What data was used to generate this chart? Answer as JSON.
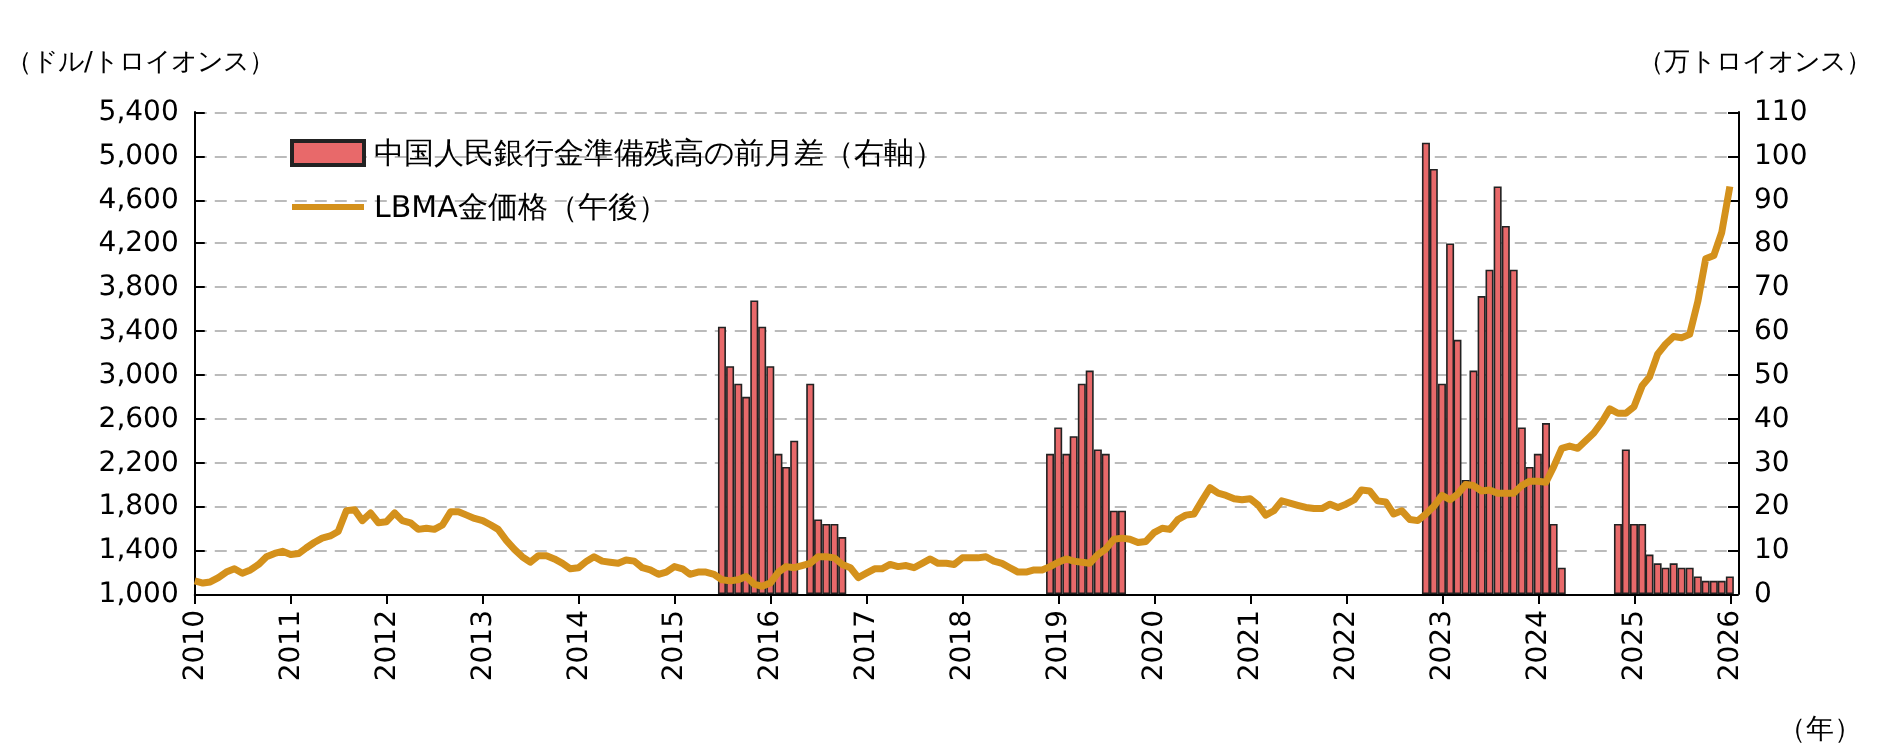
{
  "chart_data": {
    "type": "bar",
    "ylabel": "（ドル/トロイオンス）",
    "y2label": "（万トロイオンス）",
    "xlabel": "（年）",
    "xlim": [
      "2010-01",
      "2026-02"
    ],
    "xticks": [
      "2010",
      "2011",
      "2012",
      "2013",
      "2014",
      "2015",
      "2016",
      "2017",
      "2018",
      "2019",
      "2020",
      "2021",
      "2022",
      "2023",
      "2024",
      "2025",
      "2026"
    ],
    "ylim": [
      1000,
      5400
    ],
    "yticks": [
      {
        "value": 1000,
        "label": "1,000"
      },
      {
        "value": 1400,
        "label": "1,400"
      },
      {
        "value": 1800,
        "label": "1,800"
      },
      {
        "value": 2200,
        "label": "2,200"
      },
      {
        "value": 2600,
        "label": "2,600"
      },
      {
        "value": 3000,
        "label": "3,000"
      },
      {
        "value": 3400,
        "label": "3,400"
      },
      {
        "value": 3800,
        "label": "3,800"
      },
      {
        "value": 4200,
        "label": "4,200"
      },
      {
        "value": 4600,
        "label": "4,600"
      },
      {
        "value": 5000,
        "label": "5,000"
      },
      {
        "value": 5400,
        "label": "5,400"
      }
    ],
    "y2lim": [
      0,
      110
    ],
    "y2ticks": [
      0,
      10,
      20,
      30,
      40,
      50,
      60,
      70,
      80,
      90,
      100,
      110
    ],
    "grid": "y",
    "legend": "top left",
    "series": [
      {
        "name": "中国人民銀行金準備残高の前月差（右軸）",
        "axis": "y2",
        "color": "#e8696a",
        "x": [
          "2015-07",
          "2015-08",
          "2015-09",
          "2015-10",
          "2015-11",
          "2015-12",
          "2016-01",
          "2016-02",
          "2016-03",
          "2016-04",
          "2016-05",
          "2016-06",
          "2016-07",
          "2016-08",
          "2016-09",
          "2016-10",
          "2018-12",
          "2019-01",
          "2019-02",
          "2019-03",
          "2019-04",
          "2019-05",
          "2019-06",
          "2019-07",
          "2019-08",
          "2019-09",
          "2022-11",
          "2022-12",
          "2023-01",
          "2023-02",
          "2023-03",
          "2023-04",
          "2023-05",
          "2023-06",
          "2023-07",
          "2023-08",
          "2023-09",
          "2023-10",
          "2023-11",
          "2023-12",
          "2024-01",
          "2024-02",
          "2024-03",
          "2024-04",
          "2024-11",
          "2024-12",
          "2025-01",
          "2025-02",
          "2025-03",
          "2025-04",
          "2025-05",
          "2025-06",
          "2025-07",
          "2025-08",
          "2025-09",
          "2025-10",
          "2025-11",
          "2025-12",
          "2026-01"
        ],
        "values": [
          61,
          52,
          48,
          45,
          67,
          61,
          52,
          32,
          29,
          35,
          null,
          48,
          17,
          16,
          16,
          13,
          32,
          38,
          32,
          36,
          48,
          51,
          33,
          32,
          19,
          19,
          103,
          97,
          48,
          80,
          58,
          26,
          51,
          68,
          74,
          93,
          84,
          74,
          38,
          29,
          32,
          39,
          16,
          6,
          16,
          33,
          16,
          16,
          9,
          7,
          6,
          7,
          6,
          6,
          4,
          3,
          3,
          3,
          4
        ]
      },
      {
        "name": "LBMA金価格（午後）",
        "type": "line",
        "color": "#d4911c",
        "marker": "none",
        "x": [
          "2010-01",
          "2010-02",
          "2010-03",
          "2010-04",
          "2010-05",
          "2010-06",
          "2010-07",
          "2010-08",
          "2010-09",
          "2010-10",
          "2010-11",
          "2010-12",
          "2011-01",
          "2011-02",
          "2011-03",
          "2011-04",
          "2011-05",
          "2011-06",
          "2011-07",
          "2011-08",
          "2011-09",
          "2011-10",
          "2011-11",
          "2011-12",
          "2012-01",
          "2012-02",
          "2012-03",
          "2012-04",
          "2012-05",
          "2012-06",
          "2012-07",
          "2012-08",
          "2012-09",
          "2012-10",
          "2012-11",
          "2012-12",
          "2013-01",
          "2013-02",
          "2013-03",
          "2013-04",
          "2013-05",
          "2013-06",
          "2013-07",
          "2013-08",
          "2013-09",
          "2013-10",
          "2013-11",
          "2013-12",
          "2014-01",
          "2014-02",
          "2014-03",
          "2014-04",
          "2014-05",
          "2014-06",
          "2014-07",
          "2014-08",
          "2014-09",
          "2014-10",
          "2014-11",
          "2014-12",
          "2015-01",
          "2015-02",
          "2015-03",
          "2015-04",
          "2015-05",
          "2015-06",
          "2015-07",
          "2015-08",
          "2015-09",
          "2015-10",
          "2015-11",
          "2015-12",
          "2016-01",
          "2016-02",
          "2016-03",
          "2016-04",
          "2016-05",
          "2016-06",
          "2016-07",
          "2016-08",
          "2016-09",
          "2016-10",
          "2016-11",
          "2016-12",
          "2017-01",
          "2017-02",
          "2017-03",
          "2017-04",
          "2017-05",
          "2017-06",
          "2017-07",
          "2017-08",
          "2017-09",
          "2017-10",
          "2017-11",
          "2017-12",
          "2018-01",
          "2018-02",
          "2018-03",
          "2018-04",
          "2018-05",
          "2018-06",
          "2018-07",
          "2018-08",
          "2018-09",
          "2018-10",
          "2018-11",
          "2018-12",
          "2019-01",
          "2019-02",
          "2019-03",
          "2019-04",
          "2019-05",
          "2019-06",
          "2019-07",
          "2019-08",
          "2019-09",
          "2019-10",
          "2019-11",
          "2019-12",
          "2020-01",
          "2020-02",
          "2020-03",
          "2020-04",
          "2020-05",
          "2020-06",
          "2020-07",
          "2020-08",
          "2020-09",
          "2020-10",
          "2020-11",
          "2020-12",
          "2021-01",
          "2021-02",
          "2021-03",
          "2021-04",
          "2021-05",
          "2021-06",
          "2021-07",
          "2021-08",
          "2021-09",
          "2021-10",
          "2021-11",
          "2021-12",
          "2022-01",
          "2022-02",
          "2022-03",
          "2022-04",
          "2022-05",
          "2022-06",
          "2022-07",
          "2022-08",
          "2022-09",
          "2022-10",
          "2022-11",
          "2022-12",
          "2023-01",
          "2023-02",
          "2023-03",
          "2023-04",
          "2023-05",
          "2023-06",
          "2023-07",
          "2023-08",
          "2023-09",
          "2023-10",
          "2023-11",
          "2023-12",
          "2024-01",
          "2024-02",
          "2024-03",
          "2024-04",
          "2024-05",
          "2024-06",
          "2024-07",
          "2024-08",
          "2024-09",
          "2024-10",
          "2024-11",
          "2024-12",
          "2025-01",
          "2025-02",
          "2025-03",
          "2025-04",
          "2025-05",
          "2025-06",
          "2025-07",
          "2025-08",
          "2025-09",
          "2025-10",
          "2025-11",
          "2025-12",
          "2026-01"
        ],
        "values": [
          1120,
          1100,
          1110,
          1150,
          1200,
          1230,
          1190,
          1220,
          1270,
          1340,
          1370,
          1390,
          1360,
          1370,
          1420,
          1470,
          1510,
          1530,
          1570,
          1760,
          1770,
          1670,
          1740,
          1650,
          1660,
          1740,
          1670,
          1650,
          1590,
          1600,
          1590,
          1630,
          1750,
          1750,
          1720,
          1690,
          1670,
          1630,
          1590,
          1490,
          1410,
          1340,
          1290,
          1350,
          1350,
          1320,
          1280,
          1230,
          1240,
          1300,
          1340,
          1300,
          1290,
          1280,
          1310,
          1300,
          1240,
          1220,
          1180,
          1200,
          1250,
          1230,
          1180,
          1200,
          1200,
          1180,
          1130,
          1120,
          1130,
          1160,
          1090,
          1070,
          1100,
          1200,
          1250,
          1240,
          1260,
          1280,
          1340,
          1340,
          1330,
          1270,
          1240,
          1150,
          1190,
          1230,
          1230,
          1270,
          1250,
          1260,
          1240,
          1280,
          1320,
          1280,
          1280,
          1270,
          1330,
          1330,
          1330,
          1340,
          1300,
          1280,
          1240,
          1200,
          1200,
          1220,
          1220,
          1250,
          1290,
          1320,
          1300,
          1290,
          1280,
          1360,
          1410,
          1500,
          1510,
          1500,
          1470,
          1480,
          1560,
          1600,
          1590,
          1680,
          1720,
          1730,
          1850,
          1970,
          1920,
          1900,
          1870,
          1860,
          1870,
          1810,
          1720,
          1760,
          1850,
          1830,
          1810,
          1790,
          1780,
          1780,
          1820,
          1790,
          1820,
          1860,
          1950,
          1940,
          1850,
          1840,
          1730,
          1760,
          1680,
          1670,
          1730,
          1800,
          1900,
          1860,
          1910,
          2000,
          1990,
          1940,
          1950,
          1920,
          1920,
          1920,
          1990,
          2030,
          2030,
          2020,
          2160,
          2330,
          2350,
          2330,
          2400,
          2470,
          2570,
          2690,
          2650,
          2650,
          2710,
          2900,
          2980,
          3190,
          3280,
          3350,
          3340,
          3370,
          3670,
          4060,
          4090,
          4300,
          4720
        ]
      }
    ]
  }
}
